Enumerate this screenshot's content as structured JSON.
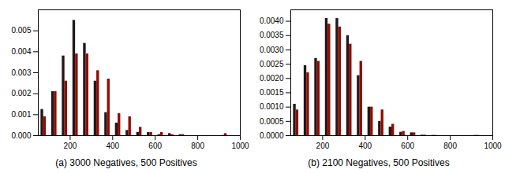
{
  "chart_data": [
    {
      "type": "bar",
      "title": "(a) 3000 Negatives, 500 Positives",
      "x": [
        75,
        125,
        175,
        225,
        275,
        325,
        375,
        425,
        475,
        525,
        575,
        625,
        675,
        725,
        925
      ],
      "series": [
        {
          "values": [
            0.00125,
            0.0021,
            0.0038,
            0.0055,
            0.0044,
            0.0026,
            0.0011,
            0.0006,
            0.00025,
            0.00015,
            0.00015,
            5e-05,
            0.0001,
            5e-05,
            1e-05
          ]
        },
        {
          "values": [
            0.0009,
            0.0021,
            0.0026,
            0.0039,
            0.0039,
            0.0031,
            0.0027,
            0.00105,
            0.0009,
            0.0004,
            0.00015,
            0.00015,
            5e-05,
            5e-05,
            0.0001
          ]
        }
      ],
      "xlim": [
        50,
        1000
      ],
      "xticks": [
        200,
        400,
        600,
        800,
        1000
      ],
      "ylim": [
        0,
        0.006
      ],
      "yticks": [
        {
          "value": 0,
          "label": "0.000"
        },
        {
          "value": 0.001,
          "label": "0.001"
        },
        {
          "value": 0.002,
          "label": "0.002"
        },
        {
          "value": 0.003,
          "label": "0.003"
        },
        {
          "value": 0.004,
          "label": "0.004"
        },
        {
          "value": 0.005,
          "label": "0.005"
        }
      ]
    },
    {
      "type": "bar",
      "title": "(b) 2100 Negatives, 500 Positives",
      "x": [
        75,
        125,
        175,
        225,
        275,
        325,
        375,
        425,
        475,
        525,
        575,
        625,
        675,
        725,
        925
      ],
      "series": [
        {
          "values": [
            0.0011,
            0.00245,
            0.0027,
            0.0041,
            0.0041,
            0.0035,
            0.0021,
            0.001,
            0.0005,
            0.0003,
            0.00012,
            0.0001,
            2e-05,
            1e-05,
            1e-05
          ]
        },
        {
          "values": [
            0.0009,
            0.0022,
            0.0026,
            0.0039,
            0.0038,
            0.0032,
            0.0026,
            0.001,
            0.0009,
            0.0004,
            0.00015,
            0.0001,
            2e-05,
            1e-05,
            1e-05
          ]
        }
      ],
      "xlim": [
        50,
        1000
      ],
      "xticks": [
        200,
        400,
        600,
        800,
        1000
      ],
      "ylim": [
        0,
        0.0044
      ],
      "yticks": [
        {
          "value": 0,
          "label": "0.0000"
        },
        {
          "value": 0.0005,
          "label": "0.0005"
        },
        {
          "value": 0.001,
          "label": "0.0010"
        },
        {
          "value": 0.0015,
          "label": "0.0015"
        },
        {
          "value": 0.002,
          "label": "0.0020"
        },
        {
          "value": 0.0025,
          "label": "0.0025"
        },
        {
          "value": 0.003,
          "label": "0.0030"
        },
        {
          "value": 0.0035,
          "label": "0.0035"
        },
        {
          "value": 0.004,
          "label": "0.0040"
        }
      ]
    }
  ]
}
